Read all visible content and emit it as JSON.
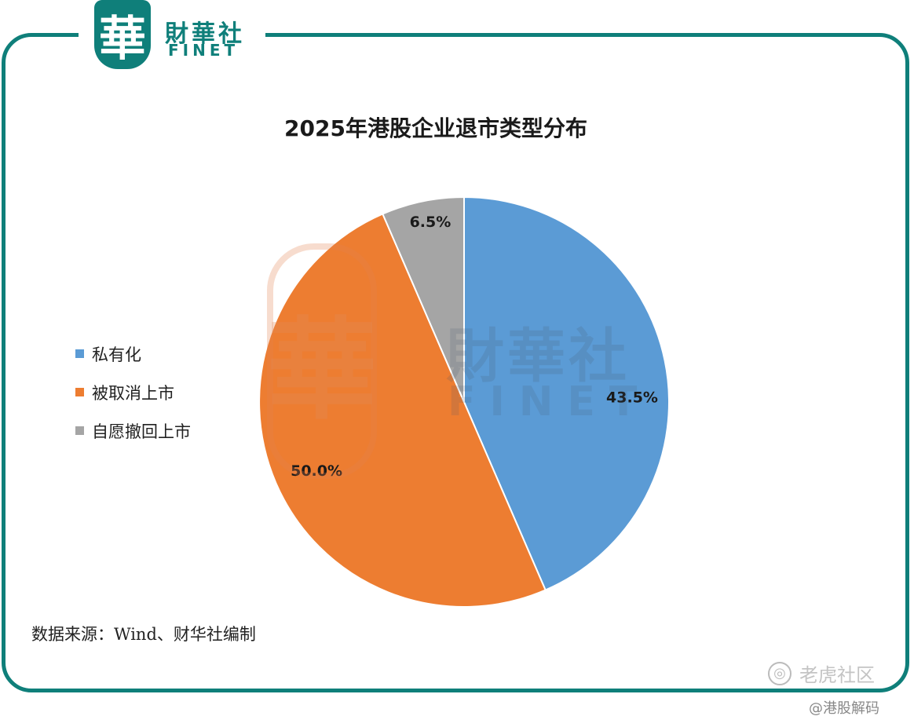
{
  "branding": {
    "logo_char": "華",
    "name_cn": "財華社",
    "name_en": "FINET",
    "brand_color": "#0f7f7a"
  },
  "watermark": {
    "seal_char": "華",
    "name_cn": "財華社",
    "name_en": "FINET"
  },
  "chart_data": {
    "type": "pie",
    "title": "2025年港股企业退市类型分布",
    "slices": [
      {
        "label": "私有化",
        "value": 43.5,
        "display": "43.5%",
        "color": "#5b9bd5"
      },
      {
        "label": "被取消上市",
        "value": 50.0,
        "display": "50.0%",
        "color": "#ed7d31"
      },
      {
        "label": "自愿撤回上市",
        "value": 6.5,
        "display": "6.5%",
        "color": "#a5a5a5"
      }
    ],
    "legend": "left",
    "source": "数据来源：Wind、财华社编制"
  },
  "footer": {
    "community_icon": "tiger-community-icon",
    "community_label": "老虎社区",
    "author": "@港股解码"
  }
}
